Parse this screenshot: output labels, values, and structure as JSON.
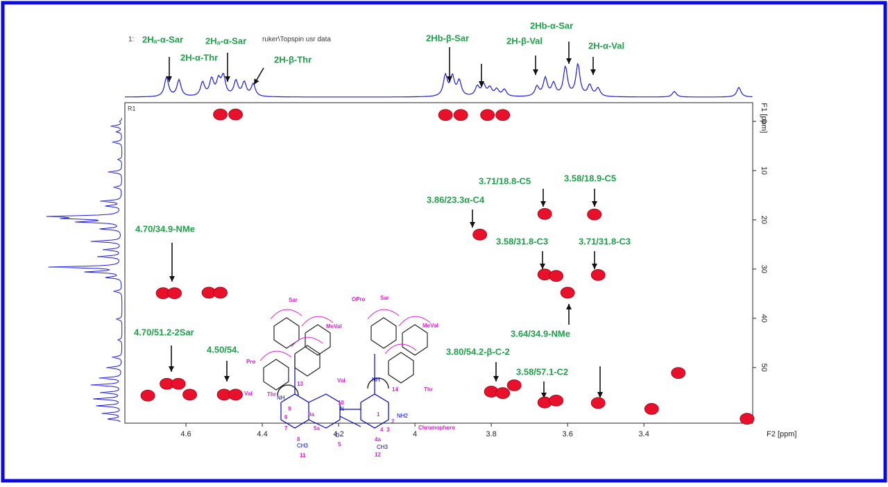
{
  "chart_data": {
    "type": "scatter",
    "header": [
      "1:",
      "ruker\\Topspin usr data"
    ],
    "plot_label": "R1",
    "xlabel": "F2 [ppm]",
    "ylabel": "F1 [ppm]",
    "xlim": [
      4.76,
      3.115
    ],
    "ylim": [
      -3.8,
      61.3
    ],
    "xticks": [
      4.6,
      4.4,
      4.2,
      4.0,
      3.8,
      3.6,
      3.4
    ],
    "yticks": [
      0,
      10,
      20,
      30,
      40,
      50
    ],
    "series": [
      {
        "name": "cross peaks",
        "color": "#e8102a",
        "x": [
          4.51,
          4.47,
          3.92,
          3.88,
          3.81,
          3.77,
          3.66,
          3.53,
          3.83,
          3.66,
          3.63,
          3.52,
          3.6,
          4.66,
          4.63,
          4.54,
          4.51,
          4.65,
          4.62,
          4.59,
          4.7,
          4.5,
          4.47,
          3.8,
          3.77,
          3.74,
          3.66,
          3.63,
          3.52,
          3.38,
          3.31,
          3.13
        ],
        "values": [
          -1.4,
          -1.4,
          -1.3,
          -1.3,
          -1.3,
          -1.3,
          18.8,
          18.9,
          23.0,
          31.1,
          31.4,
          31.2,
          34.8,
          34.9,
          34.9,
          34.8,
          34.8,
          53.3,
          53.3,
          55.5,
          55.7,
          55.5,
          55.5,
          54.9,
          55.2,
          53.6,
          57.1,
          56.7,
          57.2,
          58.4,
          51.1,
          60.4
        ]
      }
    ],
    "annotations": [
      "2Hₐ-α-Sar",
      "2Hₐ-α-Sar",
      "2H-α-Thr",
      "2H-β-Thr",
      "2Hb-β-Sar",
      "2H-β-Val",
      "2Hb-α-Sar",
      "2H-α-Val",
      "3.71/18.8-C5",
      "3.58/18.9-C5",
      "3.86/23.3α-C4",
      "4.70/34.9-NMe",
      "3.58/31.8-C3",
      "3.71/31.8-C3",
      "3.64/34.9-NMe",
      "4.70/51.2-2Sar",
      "4.50/54.",
      "3.80/54.2-β-C-2",
      "3.58/57.1-C2"
    ],
    "structure": {
      "residues": [
        "Sar",
        "MeVal",
        "Pro",
        "Val",
        "Thr",
        "OPro",
        "Sar",
        "MeVal",
        "Val",
        "Thr",
        "Chromophore"
      ],
      "atoms": [
        "NH2",
        "1",
        "2",
        "3",
        "4",
        "4a",
        "5",
        "5a",
        "6",
        "7",
        "8",
        "9",
        "9a",
        "10",
        "11",
        "12",
        "13",
        "14",
        "CH3",
        "CH3",
        "O",
        "N",
        "NH",
        "NH"
      ]
    }
  }
}
